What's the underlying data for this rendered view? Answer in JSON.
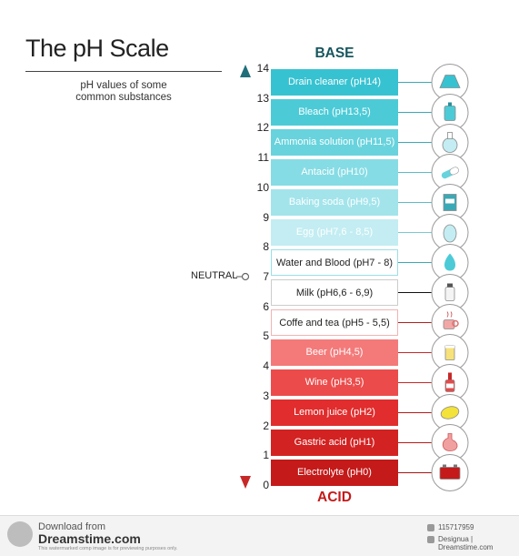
{
  "title": "The pH Scale",
  "subtitle_lines": [
    "pH values of some",
    "common substances"
  ],
  "base_label": "BASE",
  "acid_label": "ACID",
  "neutral_label": "NEUTRAL",
  "neutral_value": 7,
  "ticks": [
    "0",
    "1",
    "2",
    "3",
    "4",
    "5",
    "6",
    "7",
    "8",
    "9",
    "10",
    "11",
    "12",
    "13",
    "14"
  ],
  "substances": [
    {
      "label": "Drain cleaner (pH14)",
      "ph": 14,
      "bg": "#37c2d1",
      "fg": "#ffffff",
      "dot": "#3aa9b6",
      "border": "",
      "icon": "flask-cone-icon"
    },
    {
      "label": "Bleach (pH13,5)",
      "ph": 13.5,
      "bg": "#4ccbd7",
      "fg": "#ffffff",
      "dot": "#3aa9b6",
      "border": "",
      "icon": "bleach-bottle-icon"
    },
    {
      "label": "Ammonia solution (pH11,5)",
      "ph": 11.5,
      "bg": "#68d3dd",
      "fg": "#ffffff",
      "dot": "#3aa9b6",
      "border": "",
      "icon": "round-flask-icon"
    },
    {
      "label": "Antacid (pH10)",
      "ph": 10,
      "bg": "#86dce4",
      "fg": "#ffffff",
      "dot": "#5bbdc7",
      "border": "",
      "icon": "pill-capsule-icon"
    },
    {
      "label": "Baking soda (pH9,5)",
      "ph": 9.5,
      "bg": "#a3e4eb",
      "fg": "#ffffff",
      "dot": "#5bbdc7",
      "border": "",
      "icon": "baking-soda-box-icon"
    },
    {
      "label": "Egg (pH7,6 - 8,5)",
      "ph": 8,
      "bg": "#c3edf2",
      "fg": "#ffffff",
      "dot": "#79cbd3",
      "border": "",
      "icon": "egg-icon"
    },
    {
      "label": "Water and Blood (pH7 - 8)",
      "ph": 7.5,
      "bg": "#ffffff",
      "fg": "#222222",
      "dot": "#3aa9b6",
      "border": "#9adfe6",
      "icon": "water-drop-icon"
    },
    {
      "label": "Milk (pH6,6 - 6,9)",
      "ph": 6.8,
      "bg": "#ffffff",
      "fg": "#222222",
      "dot": "#111111",
      "border": "#cccccc",
      "icon": "milk-bottle-icon"
    },
    {
      "label": "Coffe and tea (pH5 - 5,5)",
      "ph": 5.25,
      "bg": "#ffffff",
      "fg": "#222222",
      "dot": "#b02020",
      "border": "#f1b3b3",
      "icon": "coffee-cup-icon"
    },
    {
      "label": "Beer (pH4,5)",
      "ph": 4.5,
      "bg": "#f47a7a",
      "fg": "#ffffff",
      "dot": "#c62828",
      "border": "",
      "icon": "beer-glass-icon"
    },
    {
      "label": "Wine (pH3,5)",
      "ph": 3.5,
      "bg": "#ec4b4b",
      "fg": "#ffffff",
      "dot": "#c62828",
      "border": "",
      "icon": "wine-bottle-icon"
    },
    {
      "label": "Lemon juice (pH2)",
      "ph": 2,
      "bg": "#e12d2d",
      "fg": "#ffffff",
      "dot": "#b71c1c",
      "border": "",
      "icon": "lemon-icon"
    },
    {
      "label": "Gastric acid (pH1)",
      "ph": 1,
      "bg": "#d32222",
      "fg": "#ffffff",
      "dot": "#b71c1c",
      "border": "",
      "icon": "stomach-icon"
    },
    {
      "label": "Electrolyte (pH0)",
      "ph": 0,
      "bg": "#c41a1a",
      "fg": "#ffffff",
      "dot": "#a31515",
      "border": "",
      "icon": "battery-icon"
    }
  ],
  "colors": {
    "base_arrow": "#1f6f7a",
    "acid_arrow": "#c62828"
  },
  "footer": {
    "download_from": "Download from",
    "site": "Dreamstime.com",
    "disclaimer": "This watermarked comp image is for previewing purposes only.",
    "image_id": "115717959",
    "author": "Designua | Dreamstime.com"
  }
}
